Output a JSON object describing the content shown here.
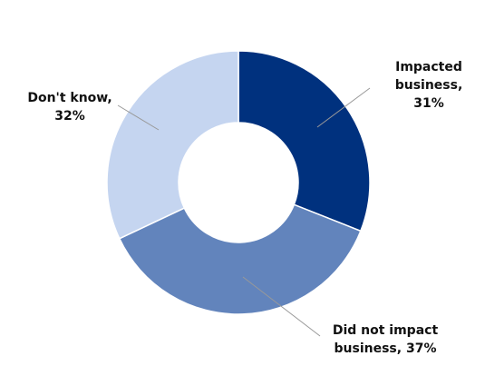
{
  "chart_data": {
    "type": "donut",
    "values": [
      31,
      37,
      32
    ],
    "value_labels": [
      "Impacted business, 31%",
      "Did not impact business, 37%",
      "Don't know, 32%"
    ],
    "colors": [
      "#00317e",
      "#6284bc",
      "#c5d5f0"
    ]
  }
}
